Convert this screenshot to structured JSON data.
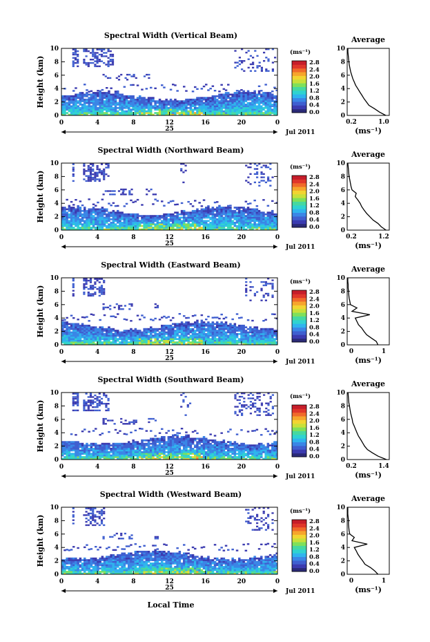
{
  "panels": [
    {
      "title": "Spectral Width (Vertical Beam)",
      "avg_title": "Average",
      "avg_xticks": [
        "0.2",
        "1.0"
      ],
      "avg_xlim": [
        0.0,
        1.2
      ],
      "avg_profile": [
        [
          0.0,
          1.1
        ],
        [
          0.5,
          0.92
        ],
        [
          1.0,
          0.78
        ],
        [
          1.5,
          0.62
        ],
        [
          2.0,
          0.55
        ],
        [
          2.5,
          0.48
        ],
        [
          3.0,
          0.42
        ],
        [
          3.5,
          0.36
        ],
        [
          4.0,
          0.3
        ],
        [
          4.5,
          0.24
        ],
        [
          5.0,
          0.2
        ],
        [
          5.5,
          0.16
        ],
        [
          6.0,
          0.13
        ],
        [
          6.5,
          0.1
        ],
        [
          7.0,
          0.08
        ],
        [
          7.5,
          0.06
        ],
        [
          8.0,
          0.05
        ],
        [
          8.5,
          0.04
        ],
        [
          9.0,
          0.03
        ],
        [
          9.5,
          0.02
        ],
        [
          10.0,
          0.02
        ]
      ],
      "blobs": [
        [
          0.5,
          0.8,
          2,
          0.55
        ],
        [
          1.0,
          2.4,
          2,
          0.45
        ],
        [
          1.9,
          3.0,
          1,
          0.35
        ],
        [
          3.0,
          3.5,
          1,
          0.28
        ],
        [
          3.8,
          4.3,
          1,
          0.22
        ],
        [
          8.0,
          9.9,
          0,
          0.18
        ],
        [
          9.0,
          1.2,
          0,
          0.2
        ],
        [
          9.5,
          0.5,
          0,
          0.18
        ]
      ]
    },
    {
      "title": "Spectral Width (Northward Beam)",
      "avg_title": "Average",
      "avg_xticks": [
        "0.2",
        "1.2"
      ],
      "avg_xlim": [
        0.0,
        1.3
      ],
      "avg_profile": [
        [
          0.0,
          1.2
        ],
        [
          0.5,
          1.05
        ],
        [
          1.0,
          0.95
        ],
        [
          1.5,
          0.8
        ],
        [
          2.0,
          0.7
        ],
        [
          2.5,
          0.6
        ],
        [
          3.0,
          0.52
        ],
        [
          3.5,
          0.45
        ],
        [
          4.0,
          0.4
        ],
        [
          4.5,
          0.33
        ],
        [
          5.0,
          0.25
        ],
        [
          5.5,
          0.28
        ],
        [
          6.0,
          0.15
        ],
        [
          6.5,
          0.12
        ],
        [
          7.0,
          0.1
        ],
        [
          7.5,
          0.08
        ],
        [
          8.0,
          0.06
        ],
        [
          8.5,
          0.05
        ],
        [
          9.0,
          0.04
        ],
        [
          9.5,
          0.03
        ],
        [
          10.0,
          0.02
        ]
      ],
      "blobs": [
        [
          0.5,
          0.6,
          2,
          0.5
        ],
        [
          1.0,
          2.2,
          2,
          0.45
        ],
        [
          1.9,
          3.0,
          1,
          0.35
        ],
        [
          2.8,
          3.3,
          1,
          0.3
        ],
        [
          3.9,
          4.4,
          1,
          0.22
        ],
        [
          5.5,
          5.8,
          0,
          0.2
        ],
        [
          8.5,
          9.8,
          0,
          0.25
        ]
      ]
    },
    {
      "title": "Spectral Width (Eastward Beam)",
      "avg_title": "Average",
      "avg_xticks": [
        "0",
        "1"
      ],
      "avg_xlim": [
        0.0,
        1.3
      ],
      "avg_profile": [
        [
          0.0,
          0.95
        ],
        [
          0.5,
          0.9
        ],
        [
          1.0,
          0.75
        ],
        [
          1.5,
          0.6
        ],
        [
          2.0,
          0.52
        ],
        [
          2.5,
          0.45
        ],
        [
          3.0,
          0.35
        ],
        [
          3.5,
          0.3
        ],
        [
          4.0,
          0.25
        ],
        [
          4.5,
          0.7
        ],
        [
          5.0,
          0.15
        ],
        [
          5.5,
          0.3
        ],
        [
          6.0,
          0.1
        ],
        [
          6.5,
          0.08
        ],
        [
          7.0,
          0.06
        ],
        [
          7.5,
          0.05
        ],
        [
          8.0,
          0.04
        ],
        [
          8.5,
          0.03
        ],
        [
          9.0,
          0.03
        ],
        [
          9.5,
          0.02
        ],
        [
          10.0,
          0.02
        ]
      ],
      "blobs": [
        [
          0.5,
          0.6,
          2,
          0.5
        ],
        [
          1.0,
          2.0,
          2,
          0.45
        ],
        [
          1.9,
          2.8,
          1,
          0.35
        ],
        [
          2.8,
          3.3,
          1,
          0.3
        ],
        [
          4.2,
          4.5,
          1,
          0.22
        ],
        [
          8.5,
          9.8,
          0,
          0.2
        ]
      ]
    },
    {
      "title": "Spectral Width (Southward Beam)",
      "avg_title": "Average",
      "avg_xticks": [
        "0.2",
        "1.4"
      ],
      "avg_xlim": [
        0.0,
        1.5
      ],
      "avg_profile": [
        [
          0.0,
          1.4
        ],
        [
          0.5,
          1.1
        ],
        [
          1.0,
          0.9
        ],
        [
          1.5,
          0.72
        ],
        [
          2.0,
          0.62
        ],
        [
          2.5,
          0.55
        ],
        [
          3.0,
          0.48
        ],
        [
          3.5,
          0.4
        ],
        [
          4.0,
          0.35
        ],
        [
          4.5,
          0.3
        ],
        [
          5.0,
          0.25
        ],
        [
          5.5,
          0.2
        ],
        [
          6.0,
          0.18
        ],
        [
          6.5,
          0.15
        ],
        [
          7.0,
          0.12
        ],
        [
          7.5,
          0.1
        ],
        [
          8.0,
          0.08
        ],
        [
          8.5,
          0.06
        ],
        [
          9.0,
          0.05
        ],
        [
          9.5,
          0.04
        ],
        [
          10.0,
          0.03
        ]
      ],
      "blobs": [
        [
          0.5,
          0.8,
          2,
          0.6
        ],
        [
          1.0,
          2.2,
          2,
          0.5
        ],
        [
          1.9,
          3.0,
          1,
          0.35
        ],
        [
          3.0,
          3.5,
          1,
          0.3
        ],
        [
          3.9,
          4.4,
          1,
          0.22
        ],
        [
          5.5,
          6.0,
          0,
          0.22
        ],
        [
          8.0,
          9.8,
          0,
          0.28
        ]
      ]
    },
    {
      "title": "Spectral Width (Westward Beam)",
      "avg_title": "Average",
      "avg_xticks": [
        "0",
        "1"
      ],
      "avg_xlim": [
        0.0,
        1.3
      ],
      "avg_profile": [
        [
          0.0,
          0.95
        ],
        [
          0.5,
          0.85
        ],
        [
          1.0,
          0.72
        ],
        [
          1.5,
          0.55
        ],
        [
          2.0,
          0.48
        ],
        [
          2.5,
          0.4
        ],
        [
          3.0,
          0.33
        ],
        [
          3.5,
          0.28
        ],
        [
          4.0,
          0.22
        ],
        [
          4.5,
          0.62
        ],
        [
          5.0,
          0.15
        ],
        [
          5.5,
          0.22
        ],
        [
          6.0,
          0.08
        ],
        [
          6.5,
          0.06
        ],
        [
          7.0,
          0.05
        ],
        [
          7.5,
          0.04
        ],
        [
          8.0,
          0.04
        ],
        [
          8.5,
          0.03
        ],
        [
          9.0,
          0.02
        ],
        [
          9.5,
          0.02
        ],
        [
          10.0,
          0.02
        ]
      ],
      "blobs": [
        [
          0.5,
          0.6,
          2,
          0.5
        ],
        [
          1.0,
          2.0,
          2,
          0.45
        ],
        [
          1.9,
          2.9,
          1,
          0.35
        ],
        [
          2.8,
          3.3,
          1,
          0.28
        ],
        [
          4.2,
          4.5,
          1,
          0.22
        ],
        [
          8.5,
          9.8,
          0,
          0.22
        ]
      ]
    }
  ],
  "axes": {
    "ylabel": "Height (km)",
    "yticks": [
      "0",
      "2",
      "4",
      "6",
      "8",
      "10"
    ],
    "xticks": [
      "0",
      "4",
      "8",
      "12",
      "16",
      "20",
      "0"
    ],
    "date_day": "25",
    "date_month": "Jul 2011",
    "xlabel": "Local Time",
    "avg_unit": "(ms⁻¹)"
  },
  "colorbar": {
    "unit": "(ms⁻¹)",
    "ticks": [
      "2.8",
      "2.4",
      "2.0",
      "1.6",
      "1.2",
      "0.8",
      "0.4",
      "0.0"
    ],
    "colors": [
      "#2b2a78",
      "#3b3bb0",
      "#3f5fd0",
      "#3a86e6",
      "#2fb4ee",
      "#2fd3d0",
      "#46d8a0",
      "#7fe05a",
      "#c8e03a",
      "#f2d431",
      "#f6a52c",
      "#f06a2a",
      "#e0362a",
      "#c61d2a"
    ]
  },
  "chart_data": {
    "type": "heatmap",
    "title": "Spectral Width",
    "xlabel": "Local Time",
    "ylabel": "Height (km)",
    "x_range": [
      0,
      24
    ],
    "y_range": [
      0,
      10
    ],
    "color_range": [
      0.0,
      2.8
    ],
    "color_unit": "(ms⁻¹)",
    "date": "25 Jul 2011",
    "series": [
      {
        "name": "Spectral Width (Vertical Beam)"
      },
      {
        "name": "Spectral Width (Northward Beam)"
      },
      {
        "name": "Spectral Width (Eastward Beam)"
      },
      {
        "name": "Spectral Width (Southward Beam)"
      },
      {
        "name": "Spectral Width (Westward Beam)"
      }
    ]
  }
}
